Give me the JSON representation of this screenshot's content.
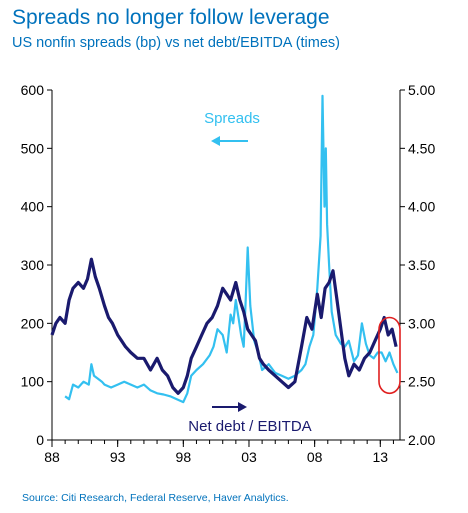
{
  "header": {
    "title": "Spreads no longer follow leverage",
    "subtitle": "US nonfin spreads (bp) vs net debt/EBITDA (times)"
  },
  "footer": {
    "source": "Source: Citi Research, Federal Reserve, Haver Analytics."
  },
  "colors": {
    "spreads": "#33C0F0",
    "leverage": "#1A1A6E",
    "highlight": "#E02020",
    "text_blue": "#0072BC"
  },
  "chart_data": {
    "type": "line",
    "title": "Spreads no longer follow leverage",
    "subtitle": "US nonfin spreads (bp) vs net debt/EBITDA (times)",
    "x_tick_labels": [
      "88",
      "93",
      "98",
      "03",
      "08",
      "13"
    ],
    "x_tick_years": [
      1988,
      1993,
      1998,
      2003,
      2008,
      2013
    ],
    "xlim": [
      1988,
      2014.5
    ],
    "y_left": {
      "label": "Spreads (bp)",
      "ylim": [
        0,
        600
      ],
      "ticks": [
        "0",
        "100",
        "200",
        "300",
        "400",
        "500",
        "600"
      ],
      "tick_values": [
        0,
        100,
        200,
        300,
        400,
        500,
        600
      ]
    },
    "y_right": {
      "label": "Net debt/EBITDA (times)",
      "ylim": [
        2.0,
        5.0
      ],
      "ticks": [
        "2.00",
        "2.50",
        "3.00",
        "3.50",
        "4.00",
        "4.50",
        "5.00"
      ],
      "tick_values": [
        2.0,
        2.5,
        3.0,
        3.5,
        4.0,
        4.5,
        5.0
      ]
    },
    "annotations": {
      "spreads_label": "Spreads",
      "leverage_label": "Net debt / EBITDA"
    },
    "series": [
      {
        "name": "Spreads",
        "axis": "left",
        "x": [
          1989.0,
          1989.3,
          1989.6,
          1990.0,
          1990.4,
          1990.8,
          1991.0,
          1991.2,
          1991.5,
          1991.8,
          1992.0,
          1992.5,
          1993.0,
          1993.5,
          1994.0,
          1994.5,
          1995.0,
          1995.5,
          1996.0,
          1996.5,
          1997.0,
          1997.5,
          1998.0,
          1998.3,
          1998.6,
          1999.0,
          1999.5,
          2000.0,
          2000.3,
          2000.6,
          2001.0,
          2001.3,
          2001.6,
          2001.8,
          2002.0,
          2002.2,
          2002.4,
          2002.6,
          2002.75,
          2002.9,
          2003.1,
          2003.4,
          2003.7,
          2004.0,
          2004.5,
          2005.0,
          2005.5,
          2006.0,
          2006.5,
          2007.0,
          2007.3,
          2007.6,
          2007.9,
          2008.2,
          2008.45,
          2008.6,
          2008.75,
          2008.85,
          2008.95,
          2009.1,
          2009.3,
          2009.6,
          2010.0,
          2010.3,
          2010.6,
          2011.0,
          2011.3,
          2011.6,
          2011.9,
          2012.2,
          2012.5,
          2012.8,
          2013.1,
          2013.4,
          2013.7,
          2014.0,
          2014.3
        ],
        "values": [
          75,
          70,
          95,
          90,
          100,
          95,
          130,
          110,
          105,
          100,
          95,
          90,
          95,
          100,
          95,
          90,
          95,
          85,
          80,
          78,
          75,
          70,
          65,
          80,
          110,
          120,
          130,
          145,
          160,
          190,
          180,
          150,
          215,
          200,
          240,
          210,
          180,
          160,
          240,
          330,
          230,
          170,
          150,
          120,
          130,
          115,
          110,
          105,
          110,
          120,
          130,
          160,
          180,
          260,
          350,
          590,
          400,
          500,
          370,
          300,
          220,
          180,
          165,
          160,
          170,
          135,
          145,
          200,
          165,
          145,
          140,
          150,
          150,
          135,
          150,
          130,
          115
        ]
      },
      {
        "name": "Net debt / EBITDA",
        "axis": "right",
        "x": [
          1988.0,
          1988.3,
          1988.6,
          1989.0,
          1989.3,
          1989.6,
          1990.0,
          1990.4,
          1990.7,
          1991.0,
          1991.3,
          1991.6,
          1992.0,
          1992.3,
          1992.6,
          1993.0,
          1993.3,
          1993.6,
          1994.0,
          1994.5,
          1995.0,
          1995.5,
          1996.0,
          1996.4,
          1996.8,
          1997.2,
          1997.6,
          1998.0,
          1998.3,
          1998.6,
          1999.0,
          1999.4,
          1999.8,
          2000.2,
          2000.6,
          2001.0,
          2001.3,
          2001.6,
          2002.0,
          2002.3,
          2002.6,
          2002.9,
          2003.2,
          2003.5,
          2003.8,
          2004.1,
          2004.5,
          2005.0,
          2005.5,
          2006.0,
          2006.5,
          2007.0,
          2007.4,
          2007.8,
          2008.2,
          2008.5,
          2008.8,
          2009.1,
          2009.4,
          2009.7,
          2010.0,
          2010.3,
          2010.6,
          2011.0,
          2011.4,
          2011.8,
          2012.2,
          2012.6,
          2013.0,
          2013.3,
          2013.6,
          2013.9,
          2014.2
        ],
        "values": [
          2.9,
          3.0,
          3.05,
          3.0,
          3.2,
          3.3,
          3.35,
          3.3,
          3.38,
          3.55,
          3.4,
          3.3,
          3.15,
          3.05,
          3.0,
          2.9,
          2.85,
          2.8,
          2.75,
          2.7,
          2.7,
          2.6,
          2.7,
          2.6,
          2.55,
          2.45,
          2.4,
          2.45,
          2.55,
          2.7,
          2.8,
          2.9,
          3.0,
          3.05,
          3.15,
          3.3,
          3.25,
          3.2,
          3.35,
          3.2,
          3.1,
          2.95,
          2.9,
          2.85,
          2.7,
          2.65,
          2.6,
          2.55,
          2.5,
          2.45,
          2.5,
          2.8,
          3.05,
          2.95,
          3.25,
          3.05,
          3.3,
          3.35,
          3.45,
          3.2,
          2.95,
          2.7,
          2.55,
          2.65,
          2.6,
          2.7,
          2.75,
          2.85,
          2.95,
          3.05,
          2.9,
          2.95,
          2.8
        ]
      }
    ]
  }
}
